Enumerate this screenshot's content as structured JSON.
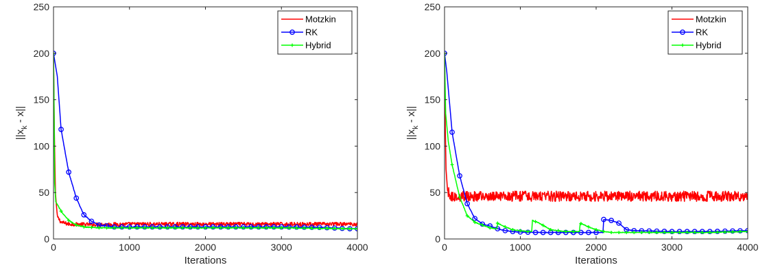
{
  "chart_data": [
    {
      "type": "line",
      "xlabel": "Iterations",
      "ylabel_main": "||x",
      "ylabel_sub": "k",
      "ylabel_tail": " - x||",
      "xlim": [
        0,
        4000
      ],
      "ylim": [
        0,
        250
      ],
      "xticks": [
        0,
        1000,
        2000,
        3000,
        4000
      ],
      "yticks": [
        0,
        50,
        100,
        150,
        200,
        250
      ],
      "legend_position": "top-right",
      "grid": false,
      "series": [
        {
          "name": "Motzkin",
          "color": "#ff0000",
          "marker": "none",
          "noise": 2.0,
          "points": [
            [
              0,
              200
            ],
            [
              10,
              120
            ],
            [
              25,
              50
            ],
            [
              50,
              24
            ],
            [
              100,
              18
            ],
            [
              200,
              16
            ],
            [
              500,
              15.5
            ],
            [
              1000,
              16
            ],
            [
              2000,
              16
            ],
            [
              3000,
              16
            ],
            [
              4000,
              16
            ]
          ]
        },
        {
          "name": "RK",
          "color": "#0000ff",
          "marker": "circle",
          "noise": 0.4,
          "points": [
            [
              0,
              200
            ],
            [
              50,
              175
            ],
            [
              100,
              118
            ],
            [
              200,
              72
            ],
            [
              300,
              44
            ],
            [
              400,
              26
            ],
            [
              500,
              19
            ],
            [
              600,
              15
            ],
            [
              700,
              14
            ],
            [
              800,
              13
            ],
            [
              1000,
              13
            ],
            [
              1500,
              13
            ],
            [
              2000,
              13
            ],
            [
              2500,
              13
            ],
            [
              3000,
              13
            ],
            [
              3500,
              12.5
            ],
            [
              3900,
              11
            ],
            [
              4000,
              11
            ]
          ]
        },
        {
          "name": "Hybrid",
          "color": "#00ff00",
          "marker": "plus",
          "noise": 0.5,
          "points": [
            [
              0,
              200
            ],
            [
              8,
              140
            ],
            [
              15,
              60
            ],
            [
              30,
              40
            ],
            [
              100,
              30
            ],
            [
              200,
              20
            ],
            [
              300,
              15
            ],
            [
              400,
              13
            ],
            [
              600,
              12
            ],
            [
              1000,
              12
            ],
            [
              1500,
              12
            ],
            [
              2000,
              12
            ],
            [
              2500,
              12
            ],
            [
              3000,
              12
            ],
            [
              3500,
              11.5
            ],
            [
              4000,
              11
            ]
          ]
        }
      ]
    },
    {
      "type": "line",
      "xlabel": "Iterations",
      "ylabel_main": "||x",
      "ylabel_sub": "k",
      "ylabel_tail": " - x||",
      "xlim": [
        0,
        4000
      ],
      "ylim": [
        0,
        250
      ],
      "xticks": [
        0,
        1000,
        2000,
        3000,
        4000
      ],
      "yticks": [
        0,
        50,
        100,
        150,
        200,
        250
      ],
      "legend_position": "top-right",
      "grid": false,
      "series": [
        {
          "name": "Motzkin",
          "color": "#ff0000",
          "marker": "none",
          "noise": 5.5,
          "points": [
            [
              0,
              200
            ],
            [
              10,
              120
            ],
            [
              20,
              75
            ],
            [
              40,
              52
            ],
            [
              80,
              46
            ],
            [
              150,
              46
            ],
            [
              500,
              46
            ],
            [
              1000,
              46
            ],
            [
              2000,
              46
            ],
            [
              3000,
              46
            ],
            [
              4000,
              46
            ]
          ]
        },
        {
          "name": "RK",
          "color": "#0000ff",
          "marker": "circle",
          "noise": 0.3,
          "points": [
            [
              0,
              200
            ],
            [
              30,
              180
            ],
            [
              100,
              115
            ],
            [
              200,
              68
            ],
            [
              300,
              38
            ],
            [
              400,
              22
            ],
            [
              500,
              16
            ],
            [
              600,
              14
            ],
            [
              700,
              11
            ],
            [
              800,
              9
            ],
            [
              900,
              8
            ],
            [
              1000,
              7.5
            ],
            [
              1200,
              7
            ],
            [
              1500,
              7
            ],
            [
              1800,
              7
            ],
            [
              2000,
              7
            ],
            [
              2090,
              7
            ],
            [
              2100,
              21
            ],
            [
              2200,
              20
            ],
            [
              2300,
              17
            ],
            [
              2400,
              10
            ],
            [
              2500,
              9
            ],
            [
              3000,
              8
            ],
            [
              3500,
              8
            ],
            [
              4000,
              9
            ]
          ]
        },
        {
          "name": "Hybrid",
          "color": "#00ff00",
          "marker": "plus",
          "noise": 0.4,
          "points": [
            [
              0,
              200
            ],
            [
              15,
              135
            ],
            [
              50,
              105
            ],
            [
              100,
              80
            ],
            [
              200,
              45
            ],
            [
              300,
              25
            ],
            [
              400,
              18
            ],
            [
              500,
              15
            ],
            [
              600,
              12
            ],
            [
              690,
              11
            ],
            [
              700,
              17
            ],
            [
              800,
              13
            ],
            [
              900,
              10
            ],
            [
              1000,
              9
            ],
            [
              1100,
              8
            ],
            [
              1150,
              8
            ],
            [
              1160,
              20
            ],
            [
              1250,
              17
            ],
            [
              1400,
              10
            ],
            [
              1600,
              8
            ],
            [
              1780,
              8
            ],
            [
              1790,
              17
            ],
            [
              1900,
              13
            ],
            [
              2000,
              10
            ],
            [
              2100,
              8
            ],
            [
              2200,
              7
            ],
            [
              2500,
              7
            ],
            [
              3000,
              7
            ],
            [
              3500,
              7
            ],
            [
              4000,
              8
            ]
          ]
        }
      ]
    }
  ]
}
